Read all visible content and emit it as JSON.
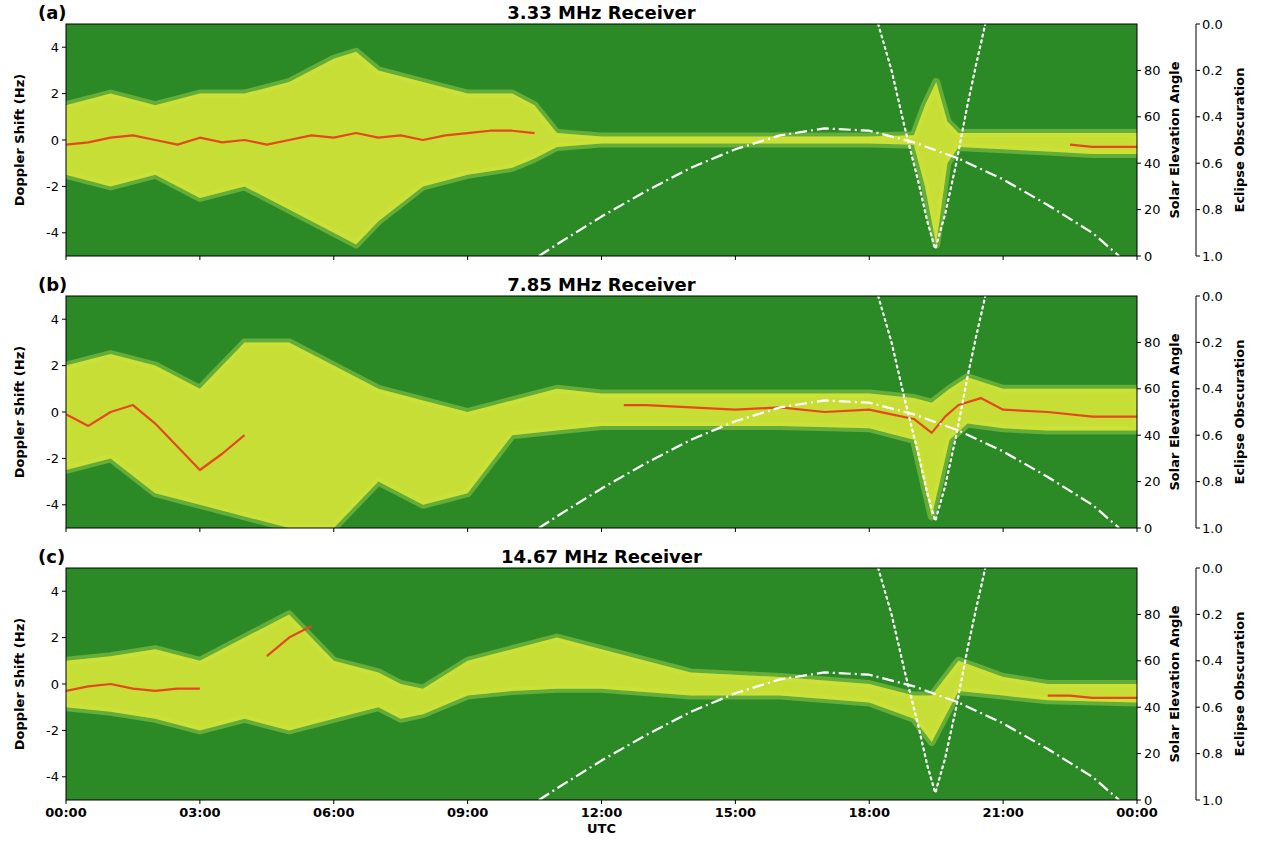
{
  "chart_data": [
    {
      "type": "line",
      "letter": "(a)",
      "title": "3.33 MHz Receiver",
      "y_label": "Doppler Shift (Hz)",
      "y2label": "Solar Elevation Angle",
      "y3label": "Eclipse Obscuration",
      "xlim": [
        0,
        24
      ],
      "xticks": [
        {
          "value": 0,
          "label": "00:00"
        },
        {
          "value": 3,
          "label": "03:00"
        },
        {
          "value": 6,
          "label": "06:00"
        },
        {
          "value": 9,
          "label": "09:00"
        },
        {
          "value": 12,
          "label": "12:00"
        },
        {
          "value": 15,
          "label": "15:00"
        },
        {
          "value": 18,
          "label": "18:00"
        },
        {
          "value": 21,
          "label": "21:00"
        },
        {
          "value": 24,
          "label": "00:00"
        }
      ],
      "ylim": [
        -5,
        5
      ],
      "yticks": [
        -4,
        -2,
        0,
        2,
        4
      ],
      "y2lim": [
        0,
        100
      ],
      "y2ticks": [
        0,
        20,
        40,
        60,
        80
      ],
      "y3lim": [
        1,
        0
      ],
      "y3ticks": [
        {
          "value": 0,
          "label": "0.0"
        },
        0.2,
        0.4,
        0.6,
        0.8,
        {
          "value": 1,
          "label": "1.0"
        }
      ],
      "grid": false,
      "tick_labels": "y",
      "series": [
        {
          "type": "area",
          "color": "#d8e636",
          "x": [
            0,
            1,
            2,
            3,
            4,
            5,
            6,
            6.5,
            7,
            8,
            9,
            10,
            10.5,
            11,
            12,
            14,
            16,
            18,
            19,
            19.25,
            19.5,
            19.75,
            20,
            21,
            22,
            23,
            24
          ],
          "values": [
            1.5,
            2,
            1.5,
            2,
            2,
            2.5,
            3.5,
            3.8,
            3,
            2.5,
            2,
            2,
            1.5,
            0.3,
            0.15,
            0.15,
            0.15,
            0.15,
            0.2,
            1.5,
            2.5,
            0.8,
            0.3,
            0.3,
            0.3,
            0.3,
            0.3
          ],
          "lower": [
            -1.5,
            -2,
            -1.5,
            -2.5,
            -2,
            -3,
            -4,
            -4.5,
            -3.5,
            -2,
            -1.5,
            -1.2,
            -0.8,
            -0.3,
            -0.15,
            -0.15,
            -0.15,
            -0.15,
            -0.2,
            -2,
            -4.5,
            -1,
            -0.3,
            -0.4,
            -0.5,
            -0.6,
            -0.6
          ]
        },
        {
          "type": "line",
          "color": "#e5481c",
          "line_style": "solid",
          "x": [
            0,
            0.5,
            1,
            1.5,
            2,
            2.5,
            3,
            3.5,
            4,
            4.5,
            5,
            5.5,
            6,
            6.5,
            7,
            7.5,
            8,
            8.5,
            9,
            9.5,
            10,
            10.5,
            11,
            22.5,
            23,
            23.5,
            24
          ],
          "values": [
            -0.2,
            -0.1,
            0.1,
            0.2,
            0,
            -0.2,
            0.1,
            -0.1,
            0,
            -0.2,
            0,
            0.2,
            0.1,
            0.3,
            0.1,
            0.2,
            0,
            0.2,
            0.3,
            0.4,
            0.4,
            0.3,
            null,
            -0.2,
            -0.3,
            -0.3,
            -0.3
          ]
        },
        {
          "type": "line",
          "color": "#ffffff",
          "line_style": "dashdot",
          "axis": "y2",
          "x": [
            10.6,
            11,
            12,
            13,
            14,
            15,
            16,
            17,
            18,
            19,
            20,
            21,
            22,
            23,
            23.6
          ],
          "values": [
            0,
            5,
            17,
            28,
            38,
            46,
            52,
            55,
            54,
            49,
            42,
            33,
            22,
            10,
            0
          ]
        },
        {
          "type": "line",
          "color": "#ffffff",
          "line_style": "dotted",
          "axis": "y3",
          "x": [
            18.2,
            18.5,
            18.8,
            19.1,
            19.3,
            19.48,
            19.7,
            19.95,
            20.2,
            20.4,
            20.6
          ],
          "values": [
            0,
            0.2,
            0.45,
            0.68,
            0.85,
            0.97,
            0.82,
            0.6,
            0.35,
            0.17,
            0
          ]
        }
      ]
    },
    {
      "type": "line",
      "letter": "(b)",
      "title": "7.85 MHz Receiver",
      "y_label": "Doppler Shift (Hz)",
      "y2label": "Solar Elevation Angle",
      "y3label": "Eclipse Obscuration",
      "xlim": [
        0,
        24
      ],
      "xticks": [
        {
          "value": 0,
          "label": "00:00"
        },
        {
          "value": 3,
          "label": "03:00"
        },
        {
          "value": 6,
          "label": "06:00"
        },
        {
          "value": 9,
          "label": "09:00"
        },
        {
          "value": 12,
          "label": "12:00"
        },
        {
          "value": 15,
          "label": "15:00"
        },
        {
          "value": 18,
          "label": "18:00"
        },
        {
          "value": 21,
          "label": "21:00"
        },
        {
          "value": 24,
          "label": "00:00"
        }
      ],
      "ylim": [
        -5,
        5
      ],
      "yticks": [
        -4,
        -2,
        0,
        2,
        4
      ],
      "y2lim": [
        0,
        100
      ],
      "y2ticks": [
        0,
        20,
        40,
        60,
        80
      ],
      "y3lim": [
        1,
        0
      ],
      "y3ticks": [
        {
          "value": 0,
          "label": "0.0"
        },
        0.2,
        0.4,
        0.6,
        0.8,
        {
          "value": 1,
          "label": "1.0"
        }
      ],
      "grid": false,
      "tick_labels": "y",
      "series": [
        {
          "type": "area",
          "color": "#d8e636",
          "x": [
            0,
            1,
            2,
            3,
            4,
            5,
            6,
            7,
            8,
            9,
            10,
            11,
            12,
            14,
            16,
            18,
            19,
            19.4,
            19.8,
            20.2,
            21,
            22,
            23,
            24
          ],
          "values": [
            2,
            2.5,
            2,
            1,
            3,
            3,
            2,
            1,
            0.5,
            0,
            0.5,
            1,
            0.8,
            0.8,
            0.8,
            0.8,
            0.6,
            0.4,
            1,
            1.5,
            1,
            1,
            1,
            1
          ],
          "lower": [
            -2.5,
            -2,
            -3.5,
            -4,
            -4.5,
            -5,
            -5,
            -3,
            -4,
            -3.5,
            -1,
            -0.8,
            -0.6,
            -0.6,
            -0.6,
            -0.7,
            -1.2,
            -4.5,
            -1.2,
            -0.5,
            -0.7,
            -0.8,
            -0.8,
            -0.8
          ]
        },
        {
          "type": "line",
          "color": "#e5481c",
          "line_style": "solid",
          "x": [
            0,
            0.5,
            1,
            1.5,
            2,
            2.5,
            3,
            3.5,
            4,
            4.5,
            12.5,
            13,
            14,
            15,
            16,
            17,
            18,
            18.5,
            19,
            19.4,
            19.7,
            20,
            20.5,
            21,
            22,
            23,
            24
          ],
          "values": [
            -0.1,
            -0.6,
            0,
            0.3,
            -0.5,
            -1.5,
            -2.5,
            -1.8,
            -1,
            null,
            0.3,
            0.3,
            0.2,
            0.1,
            0.2,
            0,
            0.1,
            -0.1,
            -0.3,
            -0.9,
            -0.2,
            0.3,
            0.6,
            0.1,
            0,
            -0.2,
            -0.2
          ]
        },
        {
          "type": "line",
          "color": "#ffffff",
          "line_style": "dashdot",
          "axis": "y2",
          "x": [
            10.6,
            11,
            12,
            13,
            14,
            15,
            16,
            17,
            18,
            19,
            20,
            21,
            22,
            23,
            23.6
          ],
          "values": [
            0,
            5,
            17,
            28,
            38,
            46,
            52,
            55,
            54,
            49,
            42,
            33,
            22,
            10,
            0
          ]
        },
        {
          "type": "line",
          "color": "#ffffff",
          "line_style": "dotted",
          "axis": "y3",
          "x": [
            18.2,
            18.5,
            18.8,
            19.1,
            19.3,
            19.48,
            19.7,
            19.95,
            20.2,
            20.4,
            20.6
          ],
          "values": [
            0,
            0.2,
            0.45,
            0.68,
            0.85,
            0.97,
            0.82,
            0.6,
            0.35,
            0.17,
            0
          ]
        }
      ]
    },
    {
      "type": "line",
      "letter": "(c)",
      "title": "14.67 MHz Receiver",
      "x_label": "UTC",
      "y_label": "Doppler Shift (Hz)",
      "y2label": "Solar Elevation Angle",
      "y3label": "Eclipse Obscuration",
      "xlim": [
        0,
        24
      ],
      "xticks": [
        {
          "value": 0,
          "label": "00:00"
        },
        {
          "value": 3,
          "label": "03:00"
        },
        {
          "value": 6,
          "label": "06:00"
        },
        {
          "value": 9,
          "label": "09:00"
        },
        {
          "value": 12,
          "label": "12:00"
        },
        {
          "value": 15,
          "label": "15:00"
        },
        {
          "value": 18,
          "label": "18:00"
        },
        {
          "value": 21,
          "label": "21:00"
        },
        {
          "value": 24,
          "label": "00:00"
        }
      ],
      "ylim": [
        -5,
        5
      ],
      "yticks": [
        -4,
        -2,
        0,
        2,
        4
      ],
      "y2lim": [
        0,
        100
      ],
      "y2ticks": [
        0,
        20,
        40,
        60,
        80
      ],
      "y3lim": [
        1,
        0
      ],
      "y3ticks": [
        {
          "value": 0,
          "label": "0.0"
        },
        0.2,
        0.4,
        0.6,
        0.8,
        {
          "value": 1,
          "label": "1.0"
        }
      ],
      "grid": false,
      "series": [
        {
          "type": "area",
          "color": "#d8e636",
          "x": [
            0,
            1,
            2,
            3,
            4,
            5,
            6,
            7,
            7.5,
            8,
            9,
            10,
            11,
            12,
            14,
            16,
            18,
            19,
            19.4,
            20,
            21,
            22,
            24
          ],
          "values": [
            1,
            1.2,
            1.5,
            1,
            2,
            3,
            1,
            0.5,
            0,
            -0.2,
            1,
            1.5,
            2,
            1.5,
            0.5,
            0.3,
            0,
            -0.5,
            -0.5,
            1,
            0.3,
            0,
            0
          ],
          "lower": [
            -1,
            -1.2,
            -1.5,
            -2,
            -1.5,
            -2,
            -1.5,
            -1,
            -1.5,
            -1.3,
            -0.5,
            -0.3,
            -0.2,
            -0.2,
            -0.5,
            -0.5,
            -0.8,
            -1.5,
            -2.5,
            -0.3,
            -0.5,
            -0.7,
            -0.8
          ]
        },
        {
          "type": "line",
          "color": "#e5481c",
          "line_style": "solid",
          "x": [
            0,
            0.5,
            1,
            1.5,
            2,
            2.5,
            3,
            3.5,
            4.5,
            5,
            5.5,
            6,
            22,
            22.5,
            23,
            23.5,
            24
          ],
          "values": [
            -0.3,
            -0.1,
            0,
            -0.2,
            -0.3,
            -0.2,
            -0.2,
            null,
            1.2,
            2,
            2.5,
            null,
            -0.5,
            -0.5,
            -0.6,
            -0.6,
            -0.6
          ]
        },
        {
          "type": "line",
          "color": "#ffffff",
          "line_style": "dashdot",
          "axis": "y2",
          "x": [
            10.6,
            11,
            12,
            13,
            14,
            15,
            16,
            17,
            18,
            19,
            20,
            21,
            22,
            23,
            23.6
          ],
          "values": [
            0,
            5,
            17,
            28,
            38,
            46,
            52,
            55,
            54,
            49,
            42,
            33,
            22,
            10,
            0
          ]
        },
        {
          "type": "line",
          "color": "#ffffff",
          "line_style": "dotted",
          "axis": "y3",
          "x": [
            18.2,
            18.5,
            18.8,
            19.1,
            19.3,
            19.48,
            19.7,
            19.95,
            20.2,
            20.4,
            20.6
          ],
          "values": [
            0,
            0.2,
            0.45,
            0.68,
            0.85,
            0.97,
            0.82,
            0.6,
            0.35,
            0.17,
            0
          ]
        }
      ]
    }
  ]
}
